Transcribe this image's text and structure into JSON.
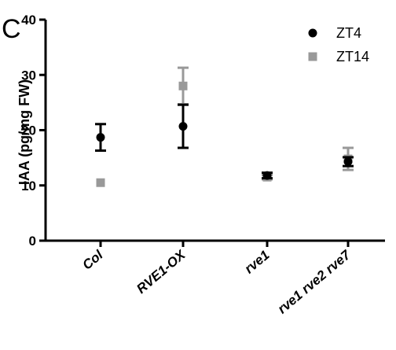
{
  "panel_label": "C",
  "chart_data": {
    "type": "scatter",
    "ylabel": "IAA (pg/mg FW)",
    "xlabel": "",
    "ylim": [
      0,
      40
    ],
    "yticks": [
      0,
      10,
      20,
      30,
      40
    ],
    "categories": [
      "Col",
      "RVE1-OX",
      "rve1",
      "rve1 rve2 rve7"
    ],
    "series": [
      {
        "name": "ZT4",
        "marker": "circle",
        "color": "#000000",
        "values": [
          18.7,
          20.7,
          11.8,
          14.3
        ],
        "error": [
          2.4,
          3.9,
          0.5,
          0.8
        ]
      },
      {
        "name": "ZT14",
        "marker": "square",
        "color": "#999999",
        "values": [
          10.5,
          28.0,
          11.5,
          14.8
        ],
        "error": [
          0,
          3.3,
          0.4,
          2.0
        ]
      }
    ],
    "legend_position": "top-right"
  }
}
